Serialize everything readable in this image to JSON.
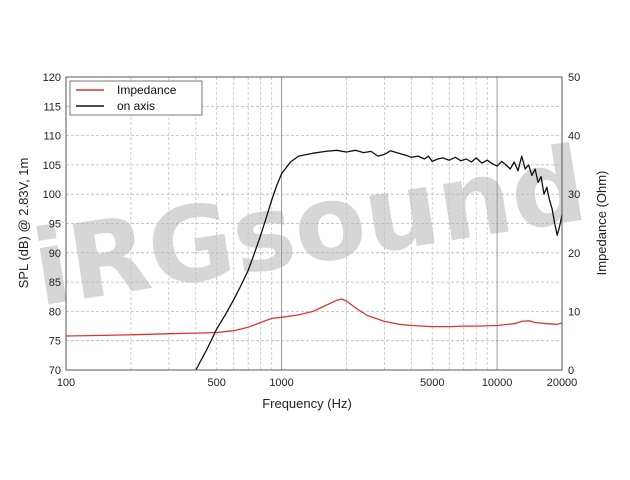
{
  "chart_data": {
    "type": "line",
    "title": "",
    "watermark": "iRGsound",
    "xlabel": "Frequency (Hz)",
    "ylabel": "SPL (dB) @ 2.83V, 1m",
    "y2label": "Impedance (Ohm)",
    "xscale": "log",
    "xlim": [
      100,
      20000
    ],
    "ylim": [
      70,
      120
    ],
    "y2lim": [
      0,
      50
    ],
    "grid": true,
    "legend_position": "top-left",
    "x_ticks": [
      100,
      500,
      1000,
      5000,
      10000,
      20000
    ],
    "x_tick_labels": [
      "100",
      "500",
      "1000",
      "5000",
      "10000",
      "20000"
    ],
    "y_ticks": [
      70,
      75,
      80,
      85,
      90,
      95,
      100,
      105,
      110,
      115,
      120
    ],
    "y_tick_labels": [
      "70",
      "75",
      "80",
      "85",
      "90",
      "95",
      "100",
      "105",
      "110",
      "115",
      "120"
    ],
    "y2_ticks": [
      0,
      10,
      20,
      30,
      40,
      50
    ],
    "y2_tick_labels": [
      "0",
      "10",
      "20",
      "30",
      "40",
      "50"
    ],
    "series": [
      {
        "name": "Impedance",
        "axis": "right",
        "color": "#e0352b",
        "x": [
          100,
          150,
          200,
          300,
          400,
          500,
          600,
          700,
          800,
          900,
          1000,
          1200,
          1400,
          1600,
          1800,
          1900,
          2000,
          2200,
          2500,
          3000,
          3500,
          4000,
          5000,
          6000,
          7000,
          8000,
          10000,
          12000,
          13000,
          14000,
          15000,
          17000,
          19000,
          20000
        ],
        "y": [
          5.8,
          5.9,
          6.0,
          6.2,
          6.3,
          6.4,
          6.7,
          7.3,
          8.1,
          8.8,
          9.0,
          9.4,
          10.0,
          11.0,
          11.9,
          12.1,
          11.8,
          10.6,
          9.3,
          8.3,
          7.8,
          7.6,
          7.4,
          7.4,
          7.5,
          7.5,
          7.6,
          7.9,
          8.3,
          8.4,
          8.1,
          7.9,
          7.8,
          8.0
        ]
      },
      {
        "name": "on axis",
        "axis": "left",
        "color": "#111111",
        "x": [
          400,
          450,
          500,
          550,
          600,
          650,
          700,
          750,
          800,
          850,
          900,
          950,
          1000,
          1100,
          1200,
          1400,
          1600,
          1800,
          2000,
          2200,
          2400,
          2600,
          2800,
          3000,
          3200,
          3500,
          3800,
          4000,
          4300,
          4600,
          4800,
          5000,
          5300,
          5600,
          6000,
          6400,
          6800,
          7200,
          7600,
          8000,
          8500,
          9000,
          9500,
          10000,
          10500,
          11000,
          11500,
          12000,
          12500,
          13000,
          13500,
          14000,
          14500,
          15000,
          15500,
          16000,
          16500,
          17000,
          17500,
          18000,
          18500,
          19000,
          19500,
          20000
        ],
        "y": [
          70,
          73.5,
          77,
          79.5,
          82,
          84.5,
          87,
          90,
          93,
          96,
          99,
          101.5,
          103.5,
          105.5,
          106.5,
          107,
          107.3,
          107.5,
          107.2,
          107.5,
          107.1,
          107.3,
          106.5,
          106.8,
          107.4,
          107.0,
          106.6,
          106.3,
          106.5,
          106.0,
          106.5,
          105.6,
          106.0,
          106.2,
          105.8,
          106.3,
          105.7,
          106.0,
          105.5,
          106.2,
          105.3,
          105.8,
          105.2,
          104.8,
          105.6,
          105.0,
          104.3,
          105.5,
          104.0,
          106.5,
          104.3,
          105.0,
          103.2,
          104.3,
          102.0,
          103.0,
          100.0,
          101.2,
          99.0,
          97.5,
          95.0,
          93.0,
          94.5,
          96.5
        ]
      }
    ]
  }
}
